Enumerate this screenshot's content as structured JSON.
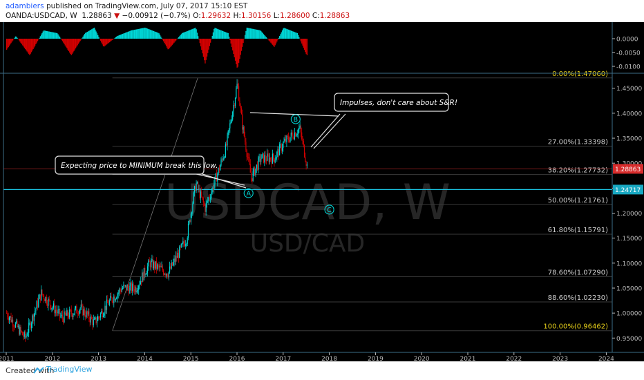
{
  "header": {
    "author": "adambiers",
    "published": "published on TradingView.com, July 07, 2017 15:10 EST",
    "symbol": "OANDA:USDCAD, W",
    "last": "1.28863",
    "change": "−0.00912 (−0.7%)",
    "o_label": "O:",
    "o": "1.29632",
    "h_label": "H:",
    "h": "1.30156",
    "l_label": "L:",
    "l": "1.28600",
    "c_label": "C:",
    "c": "1.28863"
  },
  "watermark": {
    "ticker": "USDCAD, W",
    "pair": "USD/CAD"
  },
  "footer": {
    "created": "Created with",
    "brand": "TradingView"
  },
  "colors": {
    "bg": "#000000",
    "up": "#00d7d7",
    "down": "#d40000",
    "fib": "#9aa01a",
    "last_price": "#d62c2c",
    "hline": "#1cc8e6",
    "fib_100": "#e8d11a"
  },
  "chart_data": {
    "type": "candlestick",
    "title": "USDCAD, W",
    "ylim": [
      0.92,
      1.48
    ],
    "x_ticks": [
      "2011",
      "2012",
      "2013",
      "2014",
      "2015",
      "2016",
      "2017",
      "2018",
      "2019",
      "2020",
      "2021",
      "2022",
      "2023",
      "2024"
    ],
    "y_ticks": [
      "1.45000",
      "1.40000",
      "1.35000",
      "1.30000",
      "1.25000",
      "1.20000",
      "1.15000",
      "1.10000",
      "1.05000",
      "1.00000",
      "0.95000"
    ],
    "price_path": [
      [
        "2011.0",
        1.0
      ],
      [
        "2011.4",
        0.95
      ],
      [
        "2011.75",
        1.04
      ],
      [
        "2012.2",
        0.99
      ],
      [
        "2012.6",
        1.01
      ],
      [
        "2012.9",
        0.98
      ],
      [
        "2013.2",
        1.02
      ],
      [
        "2013.5",
        1.05
      ],
      [
        "2013.8",
        1.05
      ],
      [
        "2014.1",
        1.1
      ],
      [
        "2014.5",
        1.08
      ],
      [
        "2014.9",
        1.15
      ],
      [
        "2015.1",
        1.26
      ],
      [
        "2015.3",
        1.21
      ],
      [
        "2015.5",
        1.26
      ],
      [
        "2015.75",
        1.33
      ],
      [
        "2016.0",
        1.46
      ],
      [
        "2016.1",
        1.38
      ],
      [
        "2016.3",
        1.27
      ],
      [
        "2016.5",
        1.31
      ],
      [
        "2016.8",
        1.31
      ],
      [
        "2017.0",
        1.34
      ],
      [
        "2017.35",
        1.37
      ],
      [
        "2017.52",
        1.289
      ]
    ],
    "oscillator": {
      "y_ticks": [
        "0.0000",
        "-0.0050",
        "-0.0100"
      ],
      "ylim": [
        -0.012,
        0.005
      ],
      "values": [
        [
          "2011.0",
          -0.004
        ],
        [
          "2011.2",
          0.001
        ],
        [
          "2011.5",
          -0.006
        ],
        [
          "2011.8",
          0.003
        ],
        [
          "2012.1",
          0.002
        ],
        [
          "2012.4",
          -0.006
        ],
        [
          "2012.7",
          0.002
        ],
        [
          "2012.9",
          0.004
        ],
        [
          "2013.1",
          -0.003
        ],
        [
          "2013.4",
          0.001
        ],
        [
          "2013.7",
          0.003
        ],
        [
          "2014.0",
          0.004
        ],
        [
          "2014.3",
          0.002
        ],
        [
          "2014.5",
          -0.004
        ],
        [
          "2014.8",
          0.002
        ],
        [
          "2015.1",
          0.004
        ],
        [
          "2015.3",
          -0.009
        ],
        [
          "2015.5",
          0.004
        ],
        [
          "2015.8",
          0.002
        ],
        [
          "2016.0",
          -0.011
        ],
        [
          "2016.2",
          0.004
        ],
        [
          "2016.5",
          0.003
        ],
        [
          "2016.8",
          -0.003
        ],
        [
          "2017.0",
          0.004
        ],
        [
          "2017.3",
          0.002
        ],
        [
          "2017.5",
          -0.006
        ]
      ]
    },
    "fib_levels": [
      {
        "label": "0.00%(1.47060)",
        "value": 1.4706
      },
      {
        "label": "27.00%(1.33398)",
        "value": 1.33398
      },
      {
        "label": "38.20%(1.27732)",
        "value": 1.27732
      },
      {
        "label": "50.00%(1.21761)",
        "value": 1.21761
      },
      {
        "label": "61.80%(1.15791)",
        "value": 1.15791
      },
      {
        "label": "78.60%(1.07290)",
        "value": 1.0729
      },
      {
        "label": "88.60%(1.02230)",
        "value": 1.0223
      },
      {
        "label": "100.00%(0.96462)",
        "value": 0.96462
      }
    ],
    "last_price": {
      "label": "1.28863",
      "value": 1.28863
    },
    "hline": {
      "label": "1.24717",
      "value": 1.24717
    },
    "annotations": [
      {
        "text": "Impulses, don't care about S&R!"
      },
      {
        "text": "Expecting price to MINIMUM break this low."
      }
    ],
    "wave_labels": [
      {
        "text": "A",
        "date": "2016.25",
        "price": 1.24
      },
      {
        "text": "B",
        "date": "2017.27",
        "price": 1.388
      },
      {
        "text": "C",
        "date": "2018.0",
        "price": 1.207
      }
    ]
  }
}
